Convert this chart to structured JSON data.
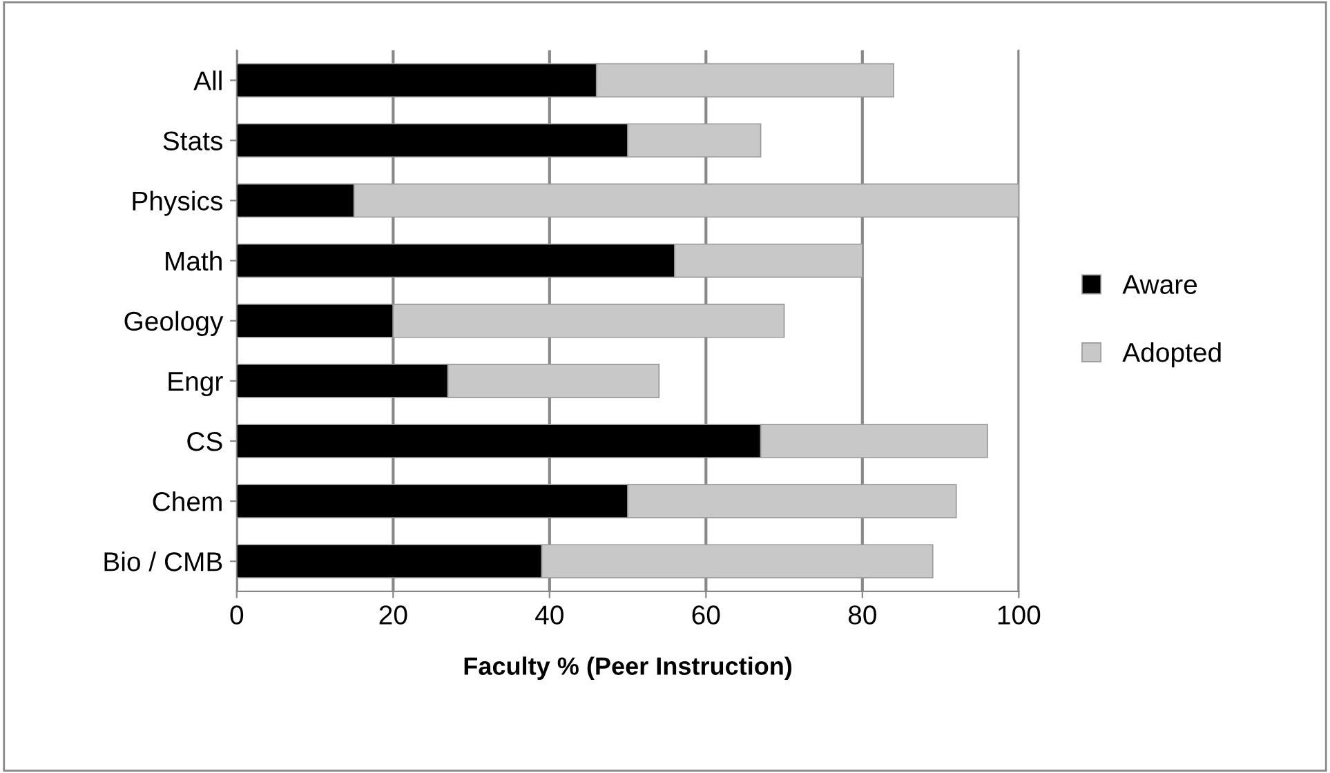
{
  "chart_data": {
    "type": "bar",
    "orientation": "horizontal",
    "stacked": true,
    "xlabel": "Faculty % (Peer Instruction)",
    "categories": [
      "All",
      "Stats",
      "Physics",
      "Math",
      "Geology",
      "Engr",
      "CS",
      "Chem",
      "Bio / CMB"
    ],
    "series": [
      {
        "name": "Aware",
        "color": "#000000",
        "values": [
          46,
          50,
          15,
          56,
          20,
          27,
          67,
          50,
          39
        ]
      },
      {
        "name": "Adopted",
        "color": "#c8c8c8",
        "values": [
          38,
          17,
          85,
          24,
          50,
          27,
          29,
          42,
          50
        ]
      }
    ],
    "xlim": [
      0,
      100
    ],
    "xticks": [
      0,
      20,
      40,
      60,
      80,
      100
    ],
    "grid": "x",
    "legend": "right"
  }
}
